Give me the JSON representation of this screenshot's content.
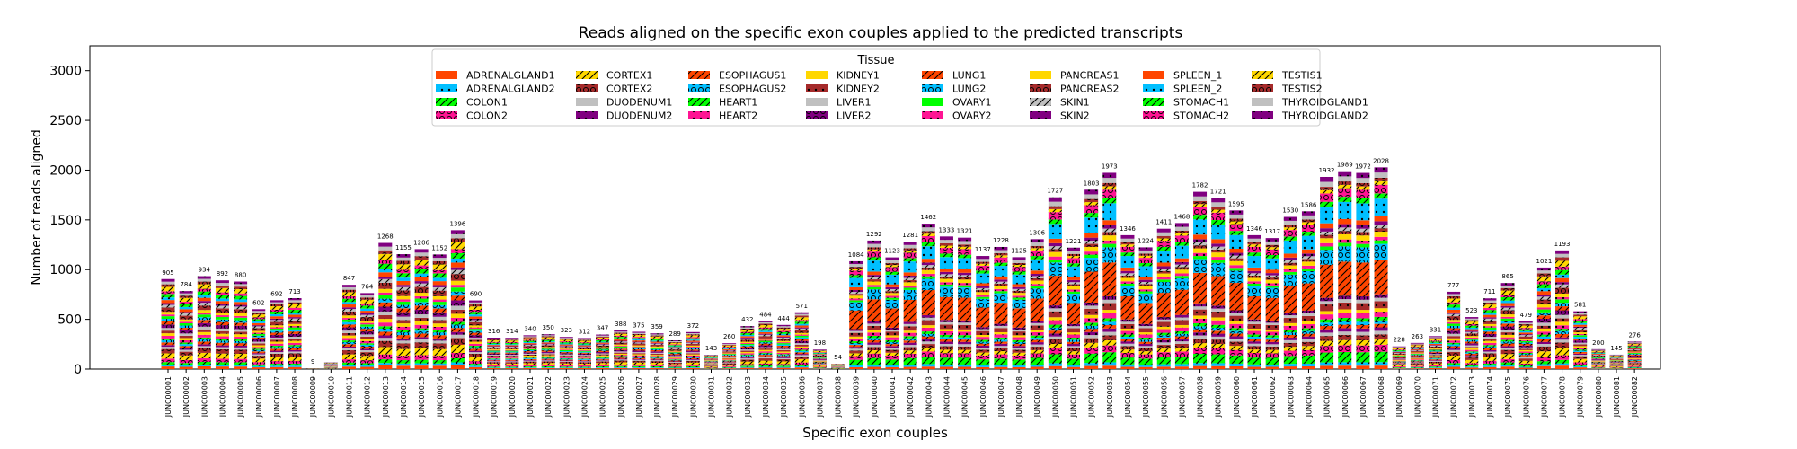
{
  "chart_data": {
    "type": "bar",
    "stacked": true,
    "title": "Reads aligned on the specific exon couples applied to the predicted transcripts",
    "xlabel": "Specific exon couples",
    "ylabel": "Number of reads aligned",
    "ylim": [
      0,
      3250
    ],
    "yticks": [
      0,
      500,
      1000,
      1500,
      2000,
      2500,
      3000
    ],
    "grid": false,
    "legend_title": "Tissue",
    "legend_position": "top-center",
    "categories": [
      "JUNC00001",
      "JUNC00002",
      "JUNC00003",
      "JUNC00004",
      "JUNC00005",
      "JUNC00006",
      "JUNC00007",
      "JUNC00008",
      "JUNC00009",
      "JUNC00010",
      "JUNC00011",
      "JUNC00012",
      "JUNC00013",
      "JUNC00014",
      "JUNC00015",
      "JUNC00016",
      "JUNC00017",
      "JUNC00018",
      "JUNC00019",
      "JUNC00020",
      "JUNC00021",
      "JUNC00022",
      "JUNC00023",
      "JUNC00024",
      "JUNC00025",
      "JUNC00026",
      "JUNC00027",
      "JUNC00028",
      "JUNC00029",
      "JUNC00030",
      "JUNC00031",
      "JUNC00032",
      "JUNC00033",
      "JUNC00034",
      "JUNC00035",
      "JUNC00036",
      "JUNC00037",
      "JUNC00038",
      "JUNC00039",
      "JUNC00040",
      "JUNC00041",
      "JUNC00042",
      "JUNC00043",
      "JUNC00044",
      "JUNC00045",
      "JUNC00046",
      "JUNC00047",
      "JUNC00048",
      "JUNC00049",
      "JUNC00050",
      "JUNC00051",
      "JUNC00052",
      "JUNC00053",
      "JUNC00054",
      "JUNC00055",
      "JUNC00056",
      "JUNC00057",
      "JUNC00058",
      "JUNC00059",
      "JUNC00060",
      "JUNC00061",
      "JUNC00062",
      "JUNC00063",
      "JUNC00064",
      "JUNC00065",
      "JUNC00066",
      "JUNC00067",
      "JUNC00068",
      "JUNC00069",
      "JUNC00070",
      "JUNC00071",
      "JUNC00072",
      "JUNC00073",
      "JUNC00074",
      "JUNC00075",
      "JUNC00076",
      "JUNC00077",
      "JUNC00078",
      "JUNC00079",
      "JUNC00080",
      "JUNC00081",
      "JUNC00082"
    ],
    "totals": [
      905,
      784,
      934,
      892,
      880,
      602,
      692,
      713,
      9,
      68,
      847,
      764,
      1268,
      1155,
      1206,
      1152,
      1396,
      690,
      316,
      314,
      340,
      350,
      323,
      312,
      347,
      388,
      375,
      359,
      289,
      372,
      143,
      260,
      432,
      484,
      444,
      571,
      198,
      54,
      1084,
      1292,
      1123,
      1281,
      1462,
      1333,
      1321,
      1137,
      1228,
      1125,
      1306,
      1727,
      1221,
      1803,
      1973,
      1346,
      1224,
      1411,
      1468,
      1782,
      1721,
      1595,
      1346,
      1317,
      1530,
      1586,
      1932,
      1989,
      1972,
      2028,
      228,
      263,
      331,
      777,
      523,
      711,
      865,
      479,
      1021,
      1193,
      581,
      200,
      145,
      276
    ],
    "total_labels": [
      "905",
      "784",
      "934",
      "892",
      "880",
      "602",
      "692",
      "713",
      "9",
      "",
      "847",
      "764",
      "1268",
      "1155",
      "1206",
      "1152",
      "1396",
      "690",
      "316",
      "314",
      "340",
      "350",
      "323",
      "312",
      "347",
      "388",
      "375",
      "359",
      "289",
      "372",
      "143",
      "260",
      "432",
      "484",
      "444",
      "571",
      "198",
      "54",
      "1084",
      "1292",
      "1123",
      "1281",
      "1462",
      "1333",
      "1321",
      "1137",
      "1228",
      "1125",
      "1306",
      "1727",
      "1221",
      "1803",
      "1973",
      "1346",
      "1224",
      "1411",
      "1468",
      "1782",
      "1721",
      "1595",
      "1346",
      "1317",
      "1530",
      "1586",
      "1932",
      "1989",
      "1972",
      "2028",
      "228",
      "263",
      "331",
      "777",
      "523",
      "711",
      "865",
      "479",
      "1021",
      "1193",
      "581",
      "200",
      "145",
      "276"
    ],
    "series": [
      {
        "name": "ADRENALGLAND1",
        "color": "#ff4500",
        "hatch": "none"
      },
      {
        "name": "ADRENALGLAND2",
        "color": "#00bfff",
        "hatch": "dot"
      },
      {
        "name": "COLON1",
        "color": "#00ff00",
        "hatch": "slash"
      },
      {
        "name": "COLON2",
        "color": "#ff1493",
        "hatch": "circle"
      },
      {
        "name": "CORTEX1",
        "color": "#ffd700",
        "hatch": "slash"
      },
      {
        "name": "CORTEX2",
        "color": "#a52a2a",
        "hatch": "circle"
      },
      {
        "name": "DUODENUM1",
        "color": "#c0c0c0",
        "hatch": "none"
      },
      {
        "name": "DUODENUM2",
        "color": "#800080",
        "hatch": "dot"
      },
      {
        "name": "ESOPHAGUS1",
        "color": "#ff4500",
        "hatch": "slash"
      },
      {
        "name": "ESOPHAGUS2",
        "color": "#00bfff",
        "hatch": "circle"
      },
      {
        "name": "HEART1",
        "color": "#00ff00",
        "hatch": "slash"
      },
      {
        "name": "HEART2",
        "color": "#ff1493",
        "hatch": "dot"
      },
      {
        "name": "KIDNEY1",
        "color": "#ffd700",
        "hatch": "none"
      },
      {
        "name": "KIDNEY2",
        "color": "#a52a2a",
        "hatch": "dot"
      },
      {
        "name": "LIVER1",
        "color": "#c0c0c0",
        "hatch": "none"
      },
      {
        "name": "LIVER2",
        "color": "#800080",
        "hatch": "circle"
      },
      {
        "name": "LUNG1",
        "color": "#ff4500",
        "hatch": "slash"
      },
      {
        "name": "LUNG2",
        "color": "#00bfff",
        "hatch": "circle"
      },
      {
        "name": "OVARY1",
        "color": "#00ff00",
        "hatch": "none"
      },
      {
        "name": "OVARY2",
        "color": "#ff1493",
        "hatch": "dot"
      },
      {
        "name": "PANCREAS1",
        "color": "#ffd700",
        "hatch": "none"
      },
      {
        "name": "PANCREAS2",
        "color": "#a52a2a",
        "hatch": "circle"
      },
      {
        "name": "SKIN1",
        "color": "#c0c0c0",
        "hatch": "slash"
      },
      {
        "name": "SKIN2",
        "color": "#800080",
        "hatch": "dot"
      },
      {
        "name": "SPLEEN_1",
        "color": "#ff4500",
        "hatch": "none"
      },
      {
        "name": "SPLEEN_2",
        "color": "#00bfff",
        "hatch": "dot"
      },
      {
        "name": "STOMACH1",
        "color": "#00ff00",
        "hatch": "slash"
      },
      {
        "name": "STOMACH2",
        "color": "#ff1493",
        "hatch": "circle"
      },
      {
        "name": "TESTIS1",
        "color": "#ffd700",
        "hatch": "slash"
      },
      {
        "name": "TESTIS2",
        "color": "#a52a2a",
        "hatch": "circle"
      },
      {
        "name": "THYROIDGLAND1",
        "color": "#c0c0c0",
        "hatch": "none"
      },
      {
        "name": "THYROIDGLAND2",
        "color": "#800080",
        "hatch": "dot"
      }
    ],
    "profiles": {
      "default": [
        0.03,
        0.02,
        0.03,
        0.04,
        0.06,
        0.05,
        0.025,
        0.02,
        0.03,
        0.025,
        0.02,
        0.03,
        0.03,
        0.03,
        0.03,
        0.04,
        0.035,
        0.03,
        0.03,
        0.02,
        0.03,
        0.05,
        0.03,
        0.02,
        0.035,
        0.03,
        0.04,
        0.03,
        0.05,
        0.03,
        0.03,
        0.03
      ],
      "lung": [
        0.02,
        0.02,
        0.06,
        0.04,
        0.03,
        0.03,
        0.02,
        0.02,
        0.02,
        0.02,
        0.02,
        0.03,
        0.02,
        0.04,
        0.02,
        0.02,
        0.2,
        0.09,
        0.02,
        0.02,
        0.03,
        0.02,
        0.02,
        0.02,
        0.03,
        0.1,
        0.03,
        0.05,
        0.02,
        0.02,
        0.03,
        0.03
      ]
    },
    "profile_by_index": {
      "38": "lung",
      "39": "lung",
      "40": "lung",
      "41": "lung",
      "42": "lung",
      "43": "lung",
      "44": "lung",
      "45": "lung",
      "46": "lung",
      "47": "lung",
      "48": "lung",
      "49": "lung",
      "50": "lung",
      "51": "lung",
      "52": "lung",
      "53": "lung",
      "54": "lung",
      "55": "lung",
      "56": "lung",
      "57": "lung",
      "58": "lung",
      "59": "lung",
      "60": "lung",
      "61": "lung",
      "62": "lung",
      "63": "lung",
      "64": "lung",
      "65": "lung",
      "66": "lung",
      "67": "lung"
    }
  }
}
